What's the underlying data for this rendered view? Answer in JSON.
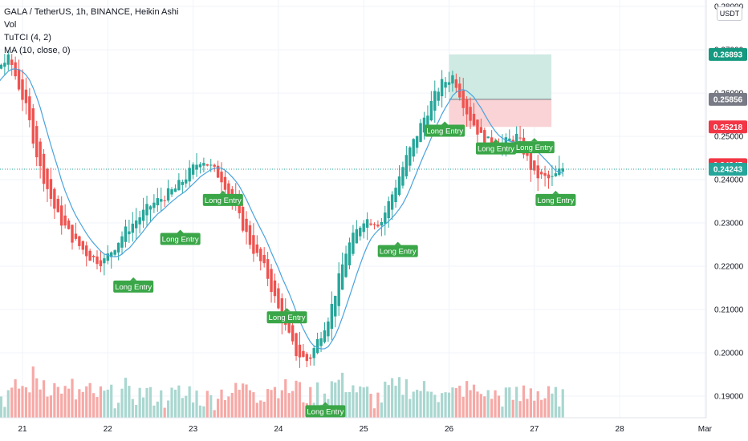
{
  "legend": {
    "symbol": "GALA / TetherUS, 1h, BINANCE, Heikin Ashi",
    "vol": "Vol",
    "tutci": "TuTCI (4, 2)",
    "ma": "MA (10, close, 0)"
  },
  "currency_button": "USDT",
  "colors": {
    "up": "#26a69a",
    "down": "#ef5350",
    "vol_up": "#a9d7d0",
    "vol_down": "#f6a9a6",
    "ma": "#4aa3df",
    "signal": "#3aa648",
    "tp_zone": "#cfeae3",
    "sl_zone": "#f9d3d5",
    "entry_tag": "#787b86",
    "last_line": "#26a69a"
  },
  "chart_data": {
    "type": "candlestick",
    "ylim": [
      0.185,
      0.2815
    ],
    "y_ticks": [
      "0.28000",
      "0.27000",
      "0.26000",
      "0.25000",
      "0.24000",
      "0.23000",
      "0.22000",
      "0.21000",
      "0.20000",
      "0.19000"
    ],
    "x_ticks": [
      "21",
      "22",
      "23",
      "24",
      "25",
      "26",
      "27",
      "28",
      "Mar"
    ],
    "price_tags": [
      {
        "label": "0.26893",
        "value": 0.26893,
        "color": "#159980"
      },
      {
        "label": "0.25856",
        "value": 0.25856,
        "color": "#787b86"
      },
      {
        "label": "0.25218",
        "value": 0.25218,
        "color": "#f23645"
      },
      {
        "label": "0.24347",
        "value": 0.24347,
        "color": "#f23645"
      },
      {
        "label": "0.24243",
        "value": 0.24243,
        "color": "#26a69a"
      }
    ],
    "last_price": 0.24243,
    "position_box": {
      "x_start": 26.0,
      "x_end": 27.2,
      "entry": 0.25856,
      "take_profit": 0.26893,
      "stop": 0.25218
    },
    "anchors": [
      [
        20.0,
        0.253
      ],
      [
        20.25,
        0.25
      ],
      [
        20.35,
        0.258
      ],
      [
        20.5,
        0.262
      ],
      [
        20.7,
        0.266
      ],
      [
        20.85,
        0.268
      ],
      [
        21.05,
        0.256
      ],
      [
        21.2,
        0.243
      ],
      [
        21.4,
        0.232
      ],
      [
        21.6,
        0.226
      ],
      [
        21.8,
        0.222
      ],
      [
        21.95,
        0.221
      ],
      [
        22.2,
        0.228
      ],
      [
        22.5,
        0.234
      ],
      [
        22.8,
        0.238
      ],
      [
        23.1,
        0.245
      ],
      [
        23.2,
        0.243
      ],
      [
        23.35,
        0.24
      ],
      [
        23.5,
        0.233
      ],
      [
        23.7,
        0.224
      ],
      [
        23.85,
        0.219
      ],
      [
        24.0,
        0.21
      ],
      [
        24.2,
        0.2
      ],
      [
        24.35,
        0.198
      ],
      [
        24.6,
        0.209
      ],
      [
        24.8,
        0.224
      ],
      [
        25.0,
        0.231
      ],
      [
        25.2,
        0.23
      ],
      [
        25.5,
        0.245
      ],
      [
        25.7,
        0.254
      ],
      [
        25.9,
        0.262
      ],
      [
        26.05,
        0.264
      ],
      [
        26.2,
        0.256
      ],
      [
        26.4,
        0.249
      ],
      [
        26.6,
        0.248
      ],
      [
        26.8,
        0.25
      ],
      [
        27.0,
        0.241
      ],
      [
        27.2,
        0.24
      ],
      [
        27.35,
        0.243
      ]
    ],
    "signals": [
      {
        "label": "Long Entry",
        "x": 20.1,
        "price": 0.2495
      },
      {
        "label": "Long Entry",
        "x": 20.0,
        "price": 0.2458
      },
      {
        "label": "Long Entry",
        "x": 22.3,
        "price": 0.2153
      },
      {
        "label": "Long Entry",
        "x": 22.85,
        "price": 0.2263
      },
      {
        "label": "Long Entry",
        "x": 23.35,
        "price": 0.2353
      },
      {
        "label": "Long Entry",
        "x": 24.1,
        "price": 0.2082
      },
      {
        "label": "Long Entry",
        "x": 24.55,
        "price": 0.1865
      },
      {
        "label": "Long Entry",
        "x": 25.4,
        "price": 0.2235
      },
      {
        "label": "Long Entry",
        "x": 25.95,
        "price": 0.2513
      },
      {
        "label": "Long Entry",
        "x": 26.55,
        "price": 0.2472
      },
      {
        "label": "Long Entry",
        "x": 27.0,
        "price": 0.2475
      },
      {
        "label": "Long Entry",
        "x": 27.25,
        "price": 0.2353
      }
    ]
  }
}
